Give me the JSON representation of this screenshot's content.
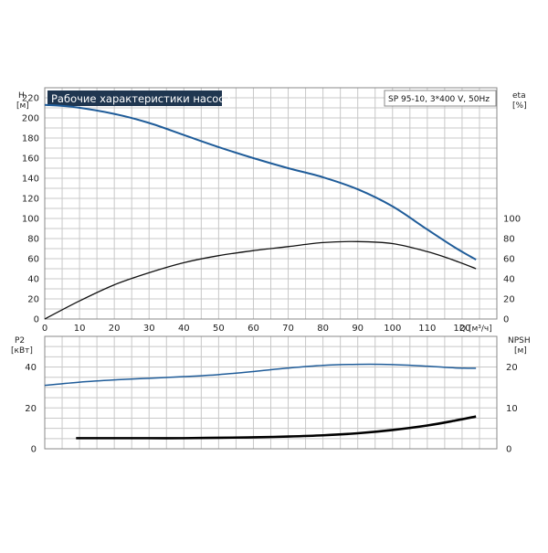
{
  "chart_data": [
    {
      "type": "line",
      "title": "Рабочие характеристики насоса",
      "legend_text": "SP 95-10, 3*400 V, 50Hz",
      "xlabel": "Q [м³/ч]",
      "ylabel_left": "H",
      "ylabel_left_unit": "[м]",
      "ylabel_right": "eta",
      "ylabel_right_unit": "[%]",
      "xlim": [
        0,
        130
      ],
      "ylim_left": [
        0,
        230
      ],
      "ylim_right": [
        0,
        230
      ],
      "x_ticks": [
        "0",
        "10",
        "20",
        "30",
        "40",
        "50",
        "60",
        "70",
        "80",
        "90",
        "100",
        "110",
        "120"
      ],
      "y_ticks_left": [
        "0",
        "20",
        "40",
        "60",
        "80",
        "100",
        "120",
        "140",
        "160",
        "180",
        "200",
        "220"
      ],
      "y_ticks_right": [
        "0",
        "20",
        "40",
        "60",
        "80",
        "100"
      ],
      "grid": true,
      "series": [
        {
          "name": "H",
          "axis": "left",
          "color": "#1f5c99",
          "x": [
            0,
            8,
            20,
            30,
            40,
            50,
            60,
            70,
            80,
            90,
            100,
            110,
            118,
            124
          ],
          "y": [
            213,
            211,
            204,
            195,
            183,
            171,
            160,
            150,
            141,
            129,
            112,
            89,
            71,
            59
          ]
        },
        {
          "name": "eta",
          "axis": "right",
          "color": "#111111",
          "x": [
            0,
            10,
            20,
            30,
            40,
            50,
            60,
            70,
            80,
            90,
            100,
            110,
            118,
            124
          ],
          "y": [
            0,
            18,
            34,
            46,
            56,
            63,
            68,
            72,
            76,
            77,
            75,
            67,
            58,
            50
          ]
        }
      ]
    },
    {
      "type": "line",
      "ylabel_left": "P2",
      "ylabel_left_unit": "[кВт]",
      "ylabel_right": "NPSH",
      "ylabel_right_unit": "[м]",
      "xlim": [
        0,
        130
      ],
      "ylim_left": [
        0,
        55
      ],
      "ylim_right": [
        0,
        27.5
      ],
      "y_ticks_left": [
        "0",
        "20",
        "40"
      ],
      "y_ticks_right": [
        "0",
        "10",
        "20"
      ],
      "grid": true,
      "series": [
        {
          "name": "P2",
          "axis": "left",
          "color": "#1f5c99",
          "x": [
            0,
            10,
            20,
            30,
            40,
            50,
            60,
            70,
            80,
            90,
            100,
            110,
            118,
            124
          ],
          "y": [
            31,
            32.6,
            33.7,
            34.5,
            35.3,
            36.3,
            37.8,
            39.5,
            40.8,
            41.3,
            41.2,
            40.4,
            39.6,
            39.4
          ]
        },
        {
          "name": "NPSH",
          "axis": "right",
          "color": "#000000",
          "x": [
            9,
            20,
            30,
            40,
            50,
            60,
            70,
            80,
            90,
            100,
            110,
            118,
            124
          ],
          "y": [
            2.6,
            2.6,
            2.6,
            2.6,
            2.7,
            2.8,
            3.0,
            3.3,
            3.8,
            4.6,
            5.7,
            6.9,
            7.9
          ]
        }
      ]
    }
  ]
}
